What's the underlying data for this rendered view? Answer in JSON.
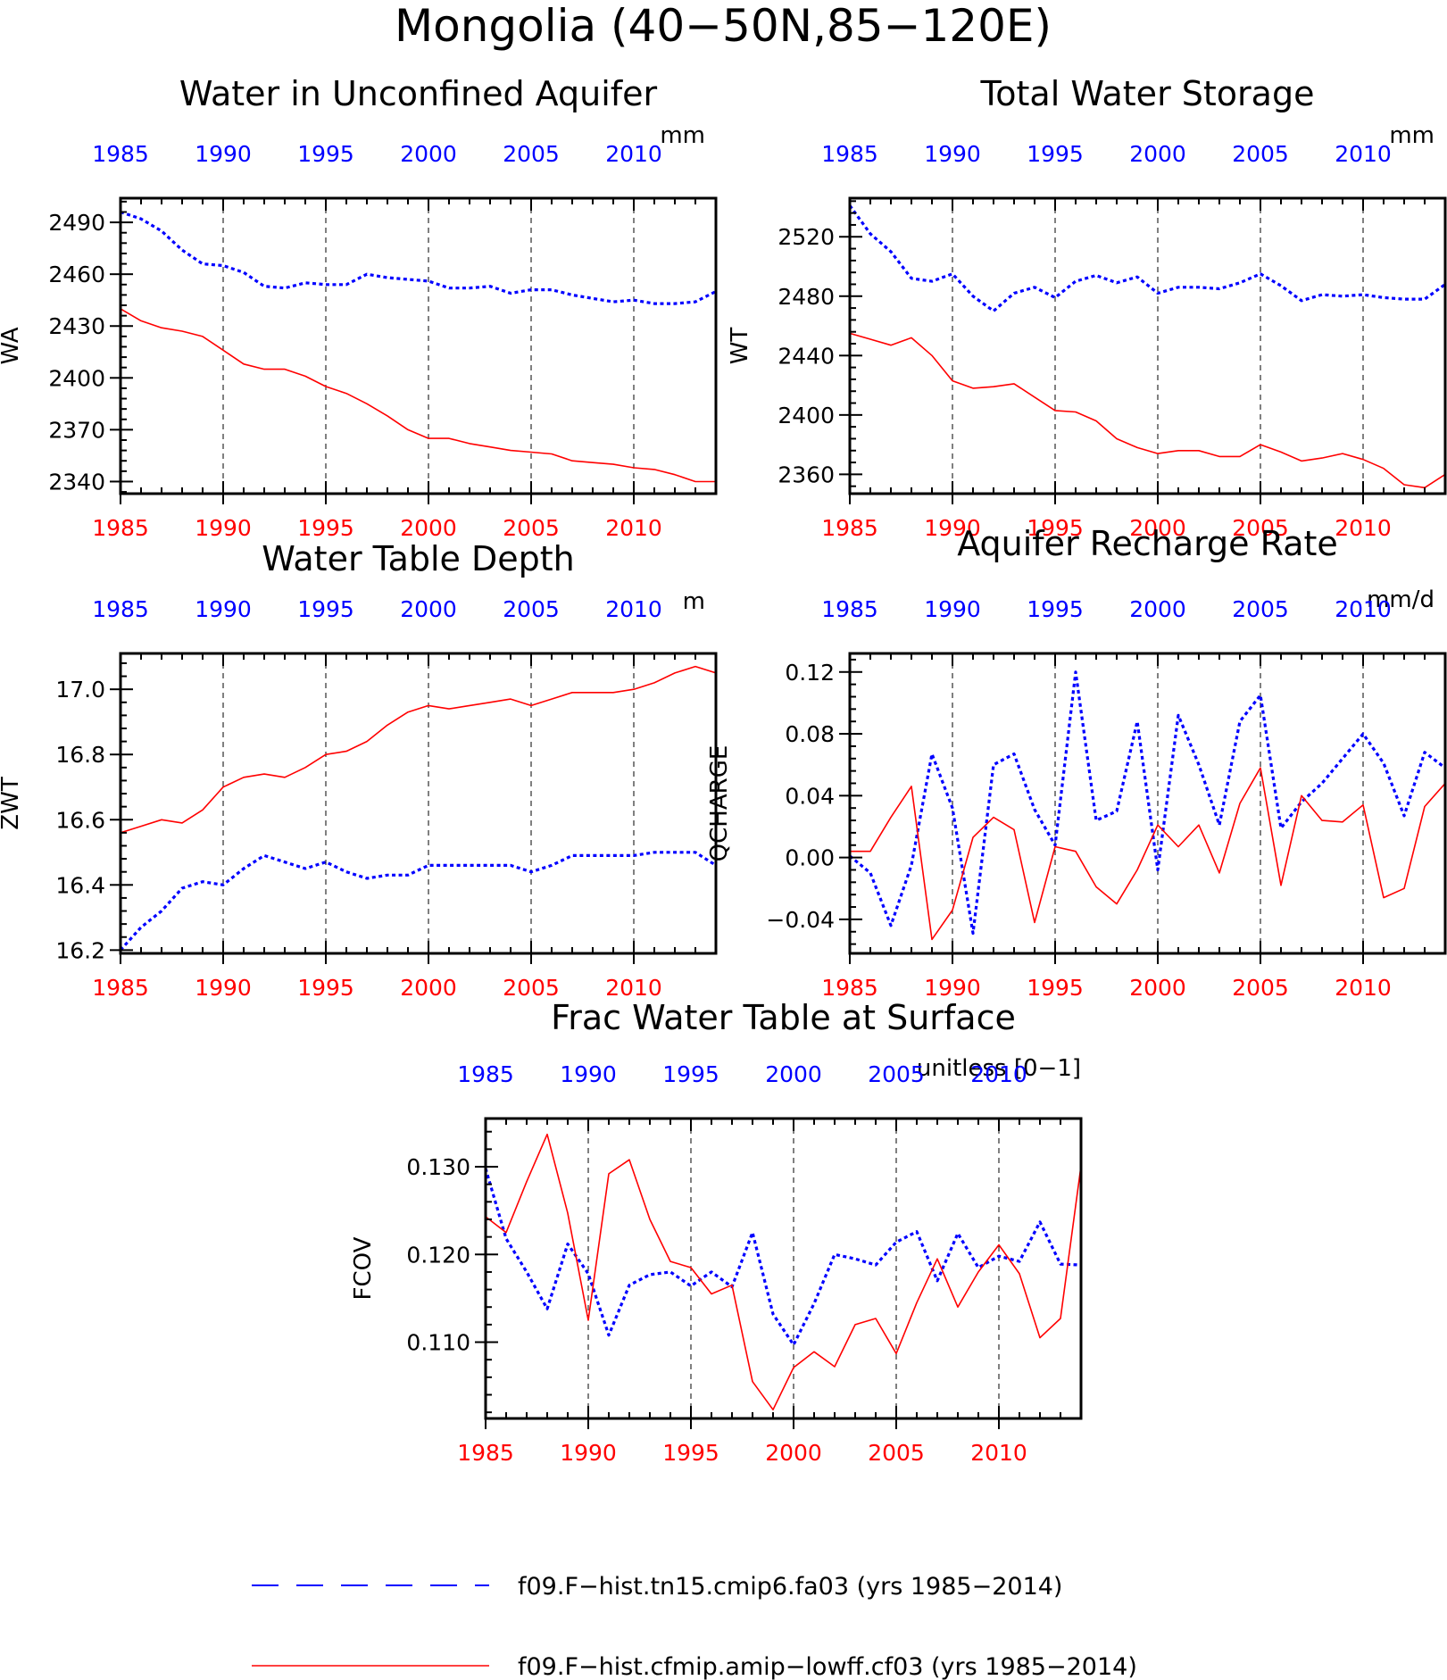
{
  "figure": {
    "title": "Mongolia (40−50N,85−120E)"
  },
  "colors": {
    "run_a": "#0000ff",
    "run_b": "#ff0000",
    "axis": "#000000",
    "grid": "#000000"
  },
  "legend": {
    "placement": "bottom",
    "entries": [
      {
        "label": "f09.F−hist.tn15.cmip6.fa03 (yrs 1985−2014)",
        "color": "#0000ff",
        "style": "dashed"
      },
      {
        "label": "f09.F−hist.cfmip.amip−lowff.cf03 (yrs 1985−2014)",
        "color": "#ff0000",
        "style": "solid"
      }
    ]
  },
  "chart_data": [
    {
      "type": "line",
      "title": "Water in Unconfined Aquifer",
      "ylabel": "WA",
      "units": "mm",
      "xlim": [
        1985,
        2014
      ],
      "ylim": [
        2333,
        2504
      ],
      "yticks": [
        2340,
        2370,
        2400,
        2430,
        2460,
        2490
      ],
      "ytick_labels": [
        "2340",
        "2370",
        "2400",
        "2430",
        "2460",
        "2490"
      ],
      "xticks": [
        1985,
        1990,
        1995,
        2000,
        2005,
        2010
      ],
      "xtick_labels": [
        "1985",
        "1990",
        "1995",
        "2000",
        "2005",
        "2010"
      ],
      "grid": "vertical dashed at 1990, 1995, 2000, 2005, 2010",
      "x": [
        1985,
        1986,
        1987,
        1988,
        1989,
        1990,
        1991,
        1992,
        1993,
        1994,
        1995,
        1996,
        1997,
        1998,
        1999,
        2000,
        2001,
        2002,
        2003,
        2004,
        2005,
        2006,
        2007,
        2008,
        2009,
        2010,
        2011,
        2012,
        2013,
        2014
      ],
      "series": [
        {
          "style": "dashed",
          "color": "#0000ff",
          "values": [
            2496,
            2492,
            2485,
            2474,
            2466,
            2465,
            2461,
            2453,
            2452,
            2455,
            2454,
            2454,
            2460,
            2458,
            2457,
            2456,
            2452,
            2452,
            2453,
            2449,
            2451,
            2451,
            2448,
            2446,
            2444,
            2445,
            2443,
            2443,
            2444,
            2450
          ]
        },
        {
          "style": "solid",
          "color": "#ff0000",
          "values": [
            2440,
            2433,
            2429,
            2427,
            2424,
            2416,
            2408,
            2405,
            2405,
            2401,
            2395,
            2391,
            2385,
            2378,
            2370,
            2365,
            2365,
            2362,
            2360,
            2358,
            2357,
            2356,
            2352,
            2351,
            2350,
            2348,
            2347,
            2344,
            2340,
            2340
          ]
        }
      ]
    },
    {
      "type": "line",
      "title": "Total Water Storage",
      "ylabel": "WT",
      "units": "mm",
      "xlim": [
        1985,
        2014
      ],
      "ylim": [
        2347,
        2546
      ],
      "yticks": [
        2360,
        2400,
        2440,
        2480,
        2520
      ],
      "ytick_labels": [
        "2360",
        "2400",
        "2440",
        "2480",
        "2520"
      ],
      "xticks": [
        1985,
        1990,
        1995,
        2000,
        2005,
        2010
      ],
      "xtick_labels": [
        "1985",
        "1990",
        "1995",
        "2000",
        "2005",
        "2010"
      ],
      "grid": "vertical dashed at 1990, 1995, 2000, 2005, 2010",
      "x": [
        1985,
        1986,
        1987,
        1988,
        1989,
        1990,
        1991,
        1992,
        1993,
        1994,
        1995,
        1996,
        1997,
        1998,
        1999,
        2000,
        2001,
        2002,
        2003,
        2004,
        2005,
        2006,
        2007,
        2008,
        2009,
        2010,
        2011,
        2012,
        2013,
        2014
      ],
      "series": [
        {
          "style": "dashed",
          "color": "#0000ff",
          "values": [
            2541,
            2522,
            2510,
            2492,
            2490,
            2495,
            2480,
            2470,
            2482,
            2486,
            2479,
            2490,
            2494,
            2489,
            2493,
            2482,
            2486,
            2486,
            2485,
            2489,
            2495,
            2487,
            2477,
            2481,
            2480,
            2481,
            2479,
            2478,
            2478,
            2488
          ]
        },
        {
          "style": "solid",
          "color": "#ff0000",
          "values": [
            2455,
            2451,
            2447,
            2452,
            2440,
            2423,
            2418,
            2419,
            2421,
            2412,
            2403,
            2402,
            2396,
            2384,
            2378,
            2374,
            2376,
            2376,
            2372,
            2372,
            2380,
            2375,
            2369,
            2371,
            2374,
            2370,
            2364,
            2353,
            2351,
            2360
          ]
        }
      ]
    },
    {
      "type": "line",
      "title": "Water Table Depth",
      "ylabel": "ZWT",
      "units": "m",
      "xlim": [
        1985,
        2014
      ],
      "ylim": [
        16.19,
        17.11
      ],
      "yticks": [
        16.2,
        16.4,
        16.6,
        16.8,
        17.0
      ],
      "ytick_labels": [
        "16.2",
        "16.4",
        "16.6",
        "16.8",
        "17.0"
      ],
      "xticks": [
        1985,
        1990,
        1995,
        2000,
        2005,
        2010
      ],
      "xtick_labels": [
        "1985",
        "1990",
        "1995",
        "2000",
        "2005",
        "2010"
      ],
      "grid": "vertical dashed at 1990, 1995, 2000, 2005, 2010",
      "x": [
        1985,
        1986,
        1987,
        1988,
        1989,
        1990,
        1991,
        1992,
        1993,
        1994,
        1995,
        1996,
        1997,
        1998,
        1999,
        2000,
        2001,
        2002,
        2003,
        2004,
        2005,
        2006,
        2007,
        2008,
        2009,
        2010,
        2011,
        2012,
        2013,
        2014
      ],
      "series": [
        {
          "style": "dashed",
          "color": "#0000ff",
          "values": [
            16.2,
            16.27,
            16.32,
            16.39,
            16.41,
            16.4,
            16.45,
            16.49,
            16.47,
            16.45,
            16.47,
            16.44,
            16.42,
            16.43,
            16.43,
            16.46,
            16.46,
            16.46,
            16.46,
            16.46,
            16.44,
            16.46,
            16.49,
            16.49,
            16.49,
            16.49,
            16.5,
            16.5,
            16.5,
            16.46
          ]
        },
        {
          "style": "solid",
          "color": "#ff0000",
          "values": [
            16.56,
            16.58,
            16.6,
            16.59,
            16.63,
            16.7,
            16.73,
            16.74,
            16.73,
            16.76,
            16.8,
            16.81,
            16.84,
            16.89,
            16.93,
            16.95,
            16.94,
            16.95,
            16.96,
            16.97,
            16.95,
            16.97,
            16.99,
            16.99,
            16.99,
            17.0,
            17.02,
            17.05,
            17.07,
            17.05
          ]
        }
      ]
    },
    {
      "type": "line",
      "title": "Aquifer Recharge Rate",
      "ylabel": "QCHARGE",
      "units": "mm/d",
      "xlim": [
        1985,
        2014
      ],
      "ylim": [
        -0.062,
        0.132
      ],
      "yticks": [
        -0.04,
        0.0,
        0.04,
        0.08,
        0.12
      ],
      "ytick_labels": [
        "−0.04",
        "0.00",
        "0.04",
        "0.08",
        "0.12"
      ],
      "xticks": [
        1985,
        1990,
        1995,
        2000,
        2005,
        2010
      ],
      "xtick_labels": [
        "1985",
        "1990",
        "1995",
        "2000",
        "2005",
        "2010"
      ],
      "grid": "vertical dashed at 1990, 1995, 2000, 2005, 2010",
      "x": [
        1985,
        1986,
        1987,
        1988,
        1989,
        1990,
        1991,
        1992,
        1993,
        1994,
        1995,
        1996,
        1997,
        1998,
        1999,
        2000,
        2001,
        2002,
        2003,
        2004,
        2005,
        2006,
        2007,
        2008,
        2009,
        2010,
        2011,
        2012,
        2013,
        2014
      ],
      "series": [
        {
          "style": "dashed",
          "color": "#0000ff",
          "values": [
            0.001,
            -0.01,
            -0.044,
            -0.005,
            0.067,
            0.032,
            -0.049,
            0.06,
            0.067,
            0.031,
            0.008,
            0.12,
            0.024,
            0.03,
            0.088,
            -0.008,
            0.092,
            0.06,
            0.021,
            0.088,
            0.105,
            0.019,
            0.036,
            0.048,
            0.064,
            0.08,
            0.061,
            0.027,
            0.068,
            0.058
          ]
        },
        {
          "style": "solid",
          "color": "#ff0000",
          "values": [
            0.004,
            0.004,
            0.026,
            0.046,
            -0.053,
            -0.034,
            0.013,
            0.026,
            0.018,
            -0.042,
            0.007,
            0.004,
            -0.019,
            -0.03,
            -0.008,
            0.021,
            0.007,
            0.021,
            -0.01,
            0.035,
            0.058,
            -0.018,
            0.04,
            0.024,
            0.023,
            0.034,
            -0.026,
            -0.02,
            0.033,
            0.048
          ]
        }
      ]
    },
    {
      "type": "line",
      "title": "Frac Water Table at Surface",
      "ylabel": "FCOV",
      "units": "unitless [0−1]",
      "xlim": [
        1985,
        2014
      ],
      "ylim": [
        0.1013,
        0.1355
      ],
      "yticks": [
        0.11,
        0.12,
        0.13
      ],
      "ytick_labels": [
        "0.110",
        "0.120",
        "0.130"
      ],
      "xticks": [
        1985,
        1990,
        1995,
        2000,
        2005,
        2010
      ],
      "xtick_labels": [
        "1985",
        "1990",
        "1995",
        "2000",
        "2005",
        "2010"
      ],
      "grid": "vertical dashed at 1990, 1995, 2000, 2005, 2010",
      "x": [
        1985,
        1986,
        1987,
        1988,
        1989,
        1990,
        1991,
        1992,
        1993,
        1994,
        1995,
        1996,
        1997,
        1998,
        1999,
        2000,
        2001,
        2002,
        2003,
        2004,
        2005,
        2006,
        2007,
        2008,
        2009,
        2010,
        2011,
        2012,
        2013,
        2014
      ],
      "series": [
        {
          "style": "dashed",
          "color": "#0000ff",
          "values": [
            0.1298,
            0.1218,
            0.118,
            0.1138,
            0.1212,
            0.1178,
            0.1108,
            0.1165,
            0.1177,
            0.118,
            0.1164,
            0.118,
            0.1163,
            0.1225,
            0.1132,
            0.1097,
            0.1144,
            0.12,
            0.1195,
            0.1188,
            0.1214,
            0.1226,
            0.117,
            0.1224,
            0.1185,
            0.1198,
            0.1192,
            0.1237,
            0.1189,
            0.1188
          ]
        },
        {
          "style": "solid",
          "color": "#ff0000",
          "values": [
            0.1243,
            0.1225,
            0.1283,
            0.1337,
            0.1247,
            0.1125,
            0.1292,
            0.1308,
            0.124,
            0.1192,
            0.1185,
            0.1155,
            0.1165,
            0.1055,
            0.1023,
            0.1071,
            0.1089,
            0.1072,
            0.112,
            0.1127,
            0.1087,
            0.1145,
            0.1195,
            0.114,
            0.118,
            0.1211,
            0.1178,
            0.1105,
            0.1127,
            0.1301
          ]
        }
      ]
    }
  ]
}
